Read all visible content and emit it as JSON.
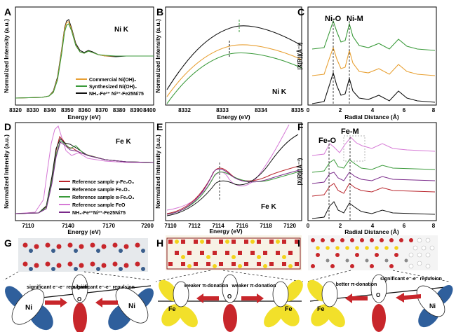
{
  "panels": {
    "A": {
      "letter": "A",
      "element": "Ni K",
      "ylabel": "Normalized Intensity (a.u.)",
      "xlabel": "Energy (eV)",
      "ticks": [
        "8320",
        "8330",
        "8340",
        "8350",
        "8360",
        "8370",
        "8380",
        "8390",
        "8400"
      ],
      "legend": [
        "Commercial Ni(OH)₂",
        "Synthesized Ni(OH)₂",
        "NH₃-Fe²⁺ Ni²⁺-Fe25Ni75"
      ]
    },
    "B": {
      "letter": "B",
      "element": "Ni K",
      "ylabel": "Normalized Intensity (a.u.)",
      "xlabel": "Energy (eV)",
      "ticks": [
        "8332",
        "8333",
        "8334",
        "8335"
      ]
    },
    "C": {
      "letter": "C",
      "ylabel": "|X(R)|(Å⁻³)",
      "xlabel": "Radial Distance (Å)",
      "ticks": [
        "0",
        "2",
        "4",
        "6",
        "8"
      ],
      "peak1": "Ni-O",
      "peak2": "Ni-M"
    },
    "D": {
      "letter": "D",
      "element": "Fe K",
      "ylabel": "Normalized Intensity (a.u.)",
      "xlabel": "Energy (eV)",
      "ticks": [
        "7110",
        "7140",
        "7170",
        "7200"
      ],
      "legend": [
        "Reference sample γ-Fe₂O₃",
        "Reference sample Fe₃O₄",
        "Reference sample α-Fe₂O₃",
        "Reference sample FeO",
        "NH₃-Fe²⁺Ni²⁺-Fe25Ni75"
      ]
    },
    "E": {
      "letter": "E",
      "element": "Fe K",
      "ylabel": "Normalized Intensity (a.u.)",
      "xlabel": "Energy (eV)",
      "ticks": [
        "7110",
        "7112",
        "7114",
        "7116",
        "7118",
        "7120"
      ]
    },
    "F": {
      "letter": "F",
      "ylabel": "|X(R)|(Å⁻³)",
      "xlabel": "Radial Distance (Å)",
      "ticks": [
        "0",
        "2",
        "4",
        "6",
        "8"
      ],
      "peak1": "Fe-O",
      "peak2": "Fe-M"
    },
    "G": {
      "letter": "G",
      "left": "significant e⁻-e⁻ repulsion",
      "right": "significant e⁻-e⁻ repulsion",
      "atomL": "Ni",
      "atomR": "Ni",
      "atomC": "O"
    },
    "H": {
      "letter": "H",
      "left": "weaker π-donation",
      "right": "weaker π-donation",
      "atomL": "Fe",
      "atomR": "Fe",
      "atomC": "O"
    },
    "I": {
      "letter": "I",
      "left": "better π-donation",
      "right": "significant e⁻-e⁻ repulsion",
      "atomL": "Fe",
      "atomR": "Ni",
      "atomC": "O"
    }
  },
  "colors": {
    "black": "#111111",
    "orange": "#e8a033",
    "green": "#3a9a3a",
    "red": "#b8232a",
    "magenta": "#d67ad6",
    "purple": "#7a2a8a"
  }
}
